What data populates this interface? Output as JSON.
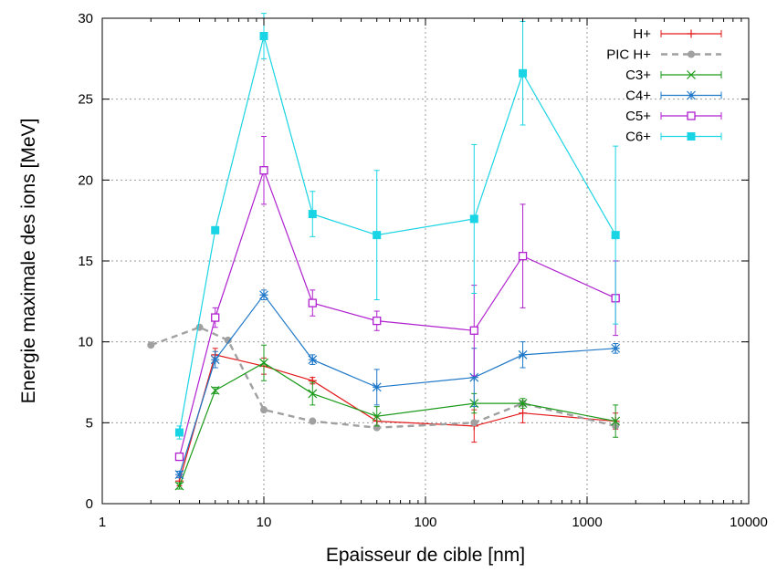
{
  "chart_data": {
    "type": "line",
    "title": "",
    "xlabel": "Epaisseur de cible [nm]",
    "ylabel": "Energie maximale des ions [MeV]",
    "xscale": "log",
    "xlim": [
      1,
      10000
    ],
    "ylim": [
      0,
      30
    ],
    "x_ticks": [
      1,
      10,
      100,
      1000,
      10000
    ],
    "x_tick_labels": [
      "1",
      "10",
      "100",
      "1000",
      "10000"
    ],
    "y_ticks": [
      0,
      5,
      10,
      15,
      20,
      25,
      30
    ],
    "y_tick_labels": [
      "0",
      "5",
      "10",
      "15",
      "20",
      "25",
      "30"
    ],
    "grid": true,
    "legend_position": "top-right",
    "series": [
      {
        "name": "H+",
        "color": "#e41a1c",
        "marker": "plus",
        "dash": false,
        "x": [
          3,
          5,
          10,
          20,
          50,
          200,
          400,
          1500
        ],
        "y": [
          1.4,
          9.2,
          8.5,
          7.6,
          5.1,
          4.8,
          5.6,
          5.1
        ],
        "err": [
          0.3,
          0.4,
          0.5,
          0.2,
          0.3,
          1.0,
          0.6,
          0.5
        ]
      },
      {
        "name": "PIC H+",
        "color": "#a0a0a0",
        "marker": "dot",
        "dash": true,
        "x": [
          2,
          4,
          6,
          10,
          20,
          50,
          200,
          400,
          1500
        ],
        "y": [
          9.8,
          10.9,
          10.1,
          5.8,
          5.1,
          4.7,
          5.0,
          6.2,
          4.8
        ],
        "err": []
      },
      {
        "name": "C3+",
        "color": "#1a9a1a",
        "marker": "x",
        "dash": false,
        "x": [
          3,
          5,
          10,
          20,
          50,
          200,
          400,
          1500
        ],
        "y": [
          1.1,
          7.0,
          8.7,
          6.8,
          5.4,
          6.2,
          6.2,
          5.1
        ],
        "err": [
          0.2,
          0.2,
          1.1,
          0.7,
          0.6,
          0.6,
          0.3,
          1.0
        ]
      },
      {
        "name": "C4+",
        "color": "#1f78c8",
        "marker": "star",
        "dash": false,
        "x": [
          3,
          5,
          10,
          20,
          50,
          200,
          400,
          1500
        ],
        "y": [
          1.8,
          8.9,
          12.9,
          8.9,
          7.2,
          7.8,
          9.2,
          9.6
        ],
        "err": [
          0.2,
          0.5,
          0.3,
          0.3,
          1.1,
          1.8,
          0.8,
          0.3
        ]
      },
      {
        "name": "C5+",
        "color": "#b020d0",
        "marker": "square-open",
        "dash": false,
        "x": [
          3,
          5,
          10,
          20,
          50,
          200,
          400,
          1500
        ],
        "y": [
          2.9,
          11.5,
          20.6,
          12.4,
          11.3,
          10.7,
          15.3,
          12.7
        ],
        "err": [
          0.2,
          0.6,
          2.1,
          0.8,
          0.6,
          2.8,
          3.2,
          2.3
        ]
      },
      {
        "name": "C6+",
        "color": "#19d4e4",
        "marker": "square-filled",
        "dash": false,
        "x": [
          3,
          5,
          10,
          20,
          50,
          200,
          400,
          1500
        ],
        "y": [
          4.4,
          16.9,
          28.9,
          17.9,
          16.6,
          17.6,
          26.6,
          16.6
        ],
        "err": [
          0.4,
          0.2,
          1.4,
          1.4,
          4.0,
          4.6,
          3.2,
          5.5
        ]
      }
    ]
  }
}
